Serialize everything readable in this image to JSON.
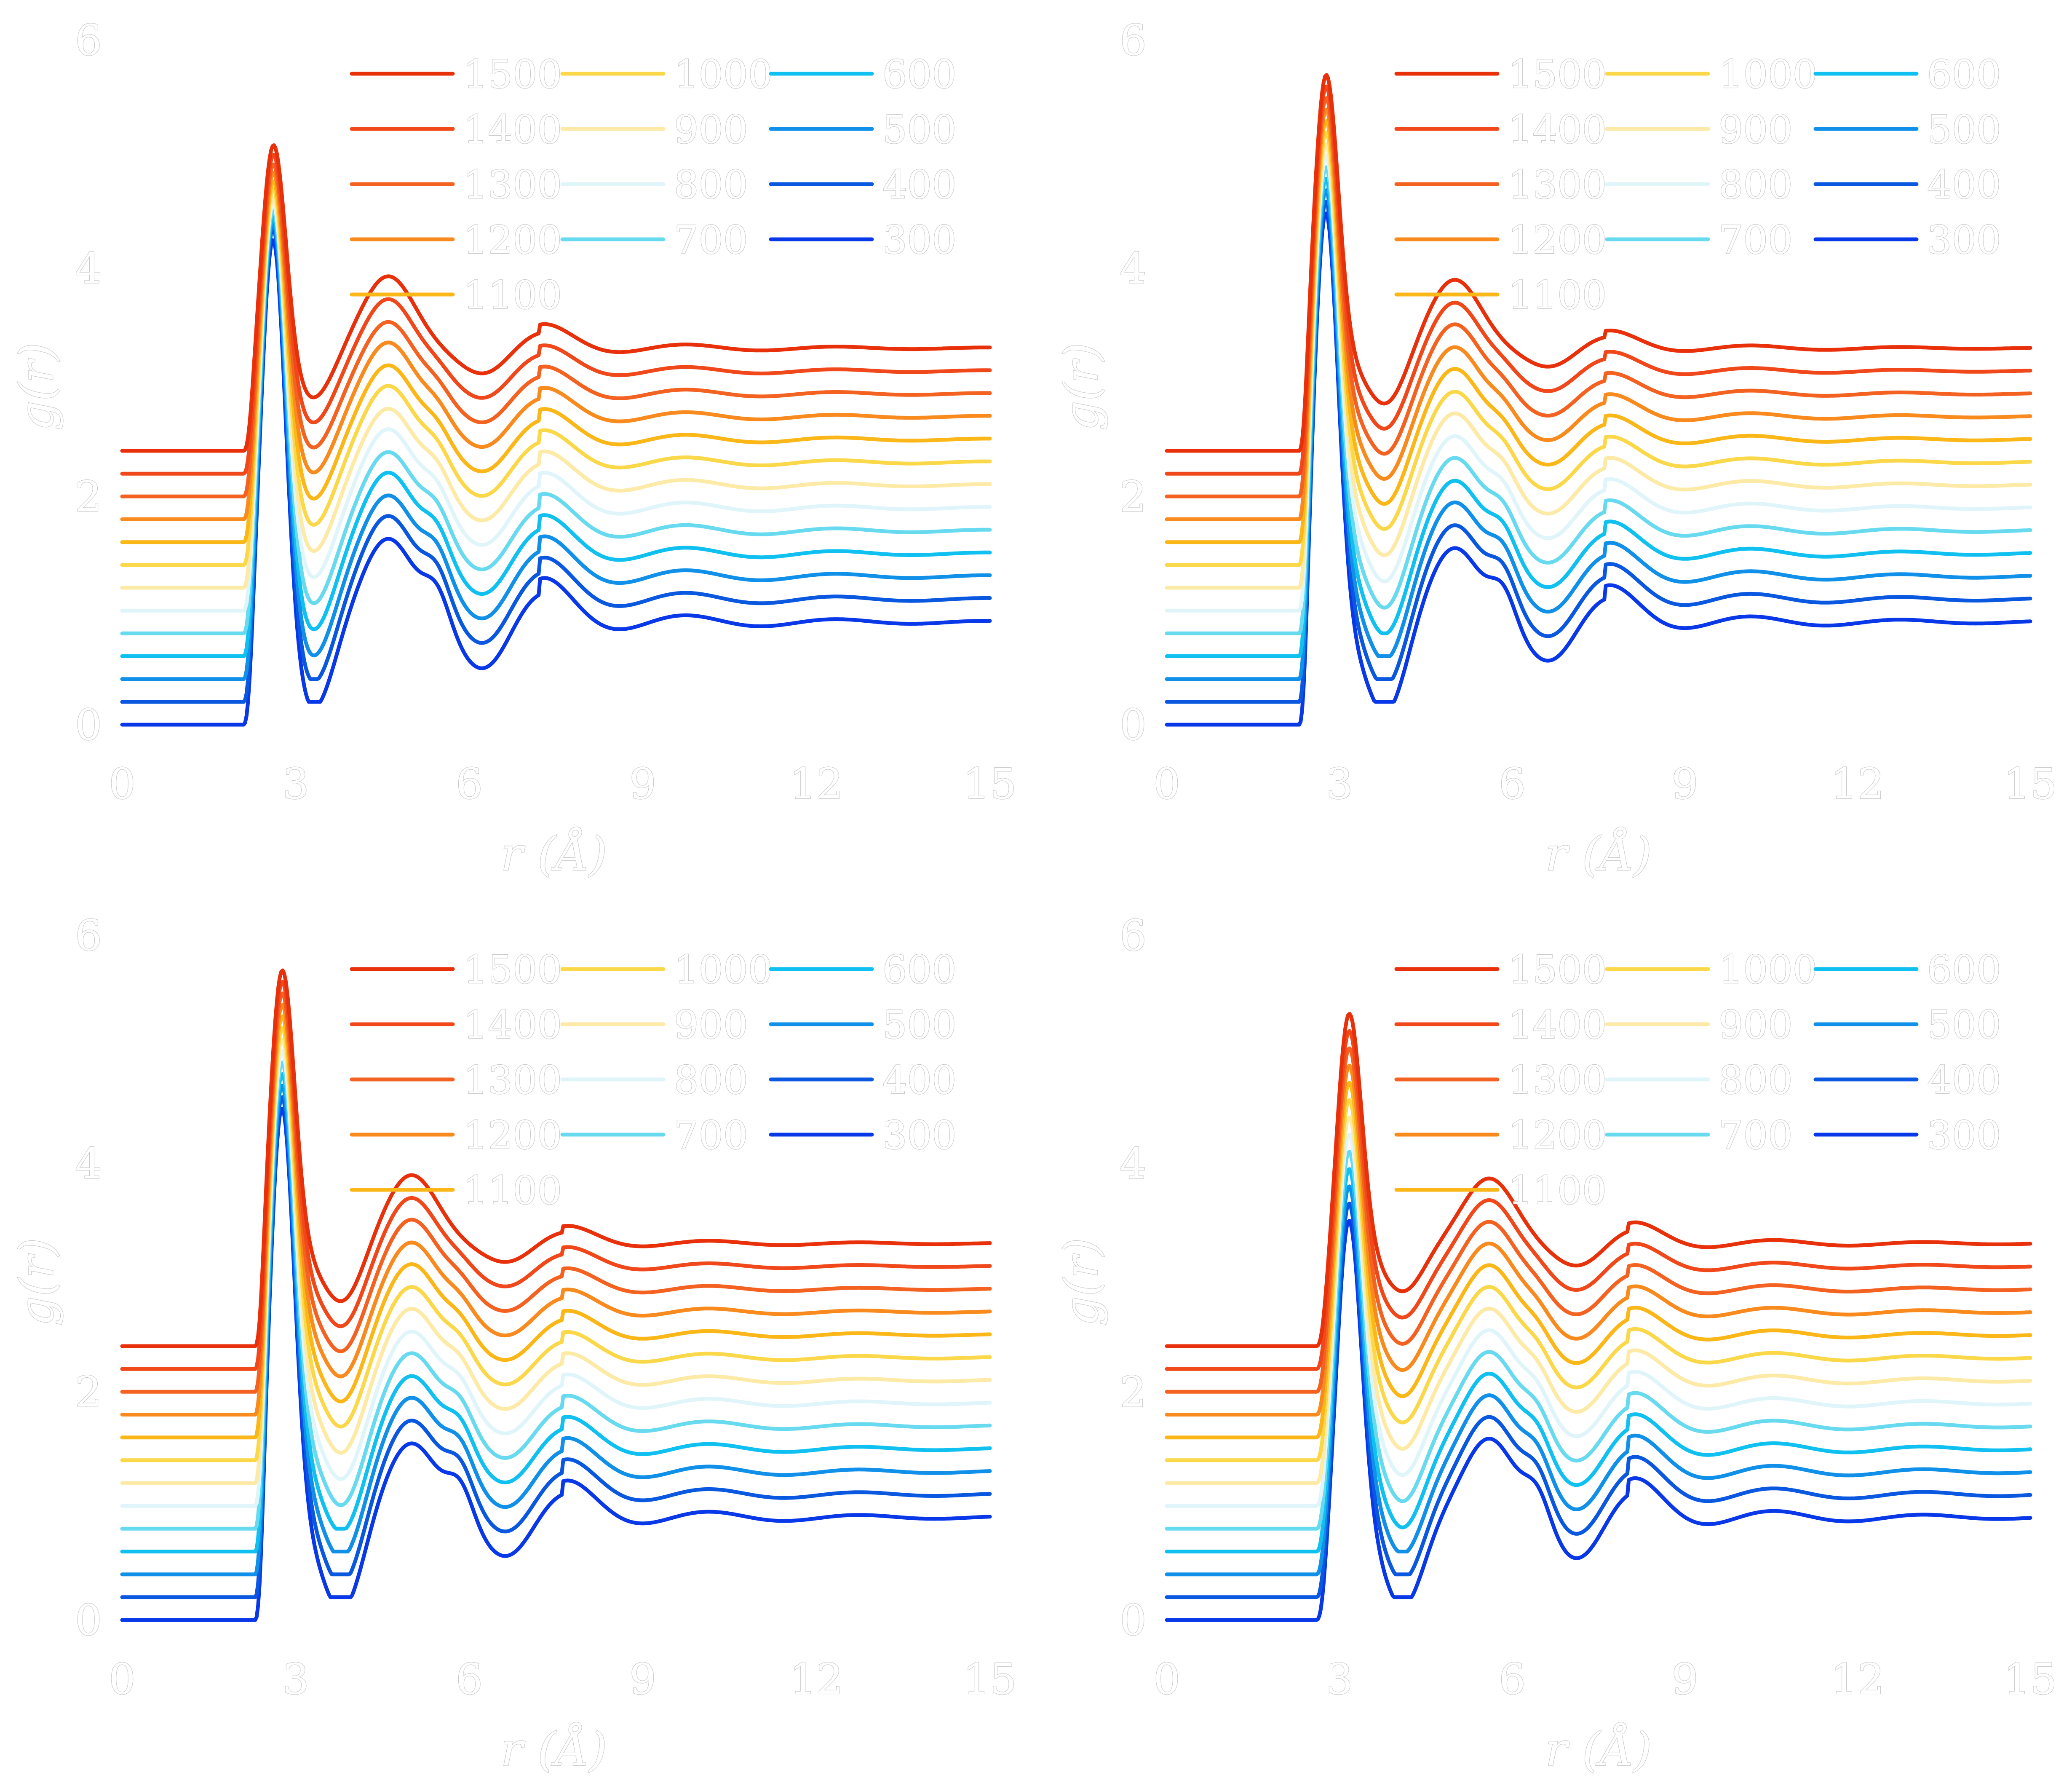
{
  "chart_data": [
    {
      "type": "line",
      "xlabel": "r (Å)",
      "ylabel": "g(r)",
      "xlim": [
        0,
        15
      ],
      "ylim": [
        0,
        6
      ],
      "xticks": [
        "0",
        "3",
        "6",
        "9",
        "12",
        "15"
      ],
      "yticks": [
        "0",
        "2",
        "4",
        "6"
      ],
      "grid": false,
      "legend_position": "top-right",
      "legend_columns": 3,
      "vertical_offset_per_series": 0.2,
      "peaks": {
        "first_r": 2.6,
        "second_r": 4.6,
        "third_r": 7.2,
        "onset_r": 2.1,
        "first_min_r": 3.3
      },
      "series": [
        {
          "name": "1500",
          "color": "#e8300a",
          "first_peak": 2.28,
          "min_depth": 0.56,
          "second_peak": 0.98,
          "split": 0.0,
          "osc": 0.3,
          "tail": 1.0
        },
        {
          "name": "1400",
          "color": "#f0481a",
          "first_peak": 2.4,
          "min_depth": 0.54,
          "second_peak": 0.98,
          "split": 0.05,
          "osc": 0.32,
          "tail": 1.0
        },
        {
          "name": "1300",
          "color": "#f46222",
          "first_peak": 2.52,
          "min_depth": 0.52,
          "second_peak": 0.98,
          "split": 0.08,
          "osc": 0.34,
          "tail": 1.0
        },
        {
          "name": "1200",
          "color": "#f88a1e",
          "first_peak": 2.65,
          "min_depth": 0.5,
          "second_peak": 1.0,
          "split": 0.1,
          "osc": 0.36,
          "tail": 1.0
        },
        {
          "name": "1100",
          "color": "#fbb618",
          "first_peak": 2.78,
          "min_depth": 0.47,
          "second_peak": 1.0,
          "split": 0.12,
          "osc": 0.38,
          "tail": 1.0
        },
        {
          "name": "1000",
          "color": "#fbd84a",
          "first_peak": 2.92,
          "min_depth": 0.44,
          "second_peak": 1.02,
          "split": 0.14,
          "osc": 0.4,
          "tail": 1.0
        },
        {
          "name": "900",
          "color": "#fdeaa6",
          "first_peak": 3.05,
          "min_depth": 0.41,
          "second_peak": 1.02,
          "split": 0.16,
          "osc": 0.42,
          "tail": 1.0
        },
        {
          "name": "800",
          "color": "#dff5fa",
          "first_peak": 3.2,
          "min_depth": 0.38,
          "second_peak": 1.04,
          "split": 0.18,
          "osc": 0.44,
          "tail": 1.0
        },
        {
          "name": "700",
          "color": "#68daf0",
          "first_peak": 3.35,
          "min_depth": 0.35,
          "second_peak": 1.04,
          "split": 0.2,
          "osc": 0.46,
          "tail": 1.0
        },
        {
          "name": "600",
          "color": "#10c0f0",
          "first_peak": 3.5,
          "min_depth": 0.32,
          "second_peak": 1.06,
          "split": 0.22,
          "osc": 0.48,
          "tail": 1.0
        },
        {
          "name": "500",
          "color": "#1090e8",
          "first_peak": 3.65,
          "min_depth": 0.29,
          "second_peak": 1.06,
          "split": 0.24,
          "osc": 0.5,
          "tail": 1.0
        },
        {
          "name": "400",
          "color": "#0a58e0",
          "first_peak": 3.8,
          "min_depth": 0.26,
          "second_peak": 1.08,
          "split": 0.26,
          "osc": 0.52,
          "tail": 1.0
        },
        {
          "name": "300",
          "color": "#0838e8",
          "first_peak": 3.9,
          "min_depth": 0.23,
          "second_peak": 1.08,
          "split": 0.28,
          "osc": 0.55,
          "tail": 1.0
        }
      ]
    },
    {
      "type": "line",
      "xlabel": "r (Å)",
      "ylabel": "g(r)",
      "xlim": [
        0,
        15
      ],
      "ylim": [
        0,
        6
      ],
      "xticks": [
        "0",
        "3",
        "6",
        "9",
        "12",
        "15"
      ],
      "yticks": [
        "0",
        "2",
        "4",
        "6"
      ],
      "grid": false,
      "legend_position": "top-right",
      "legend_columns": 3,
      "vertical_offset_per_series": 0.2,
      "peaks": {
        "first_r": 2.75,
        "second_r": 5.0,
        "third_r": 7.6,
        "onset_r": 2.3,
        "first_min_r": 3.8
      },
      "series": [
        {
          "name": "1500",
          "color": "#e8300a",
          "first_peak": 2.9,
          "min_depth": 0.5,
          "second_peak": 0.95,
          "split": 0.0,
          "osc": 0.22,
          "tail": 1.0
        },
        {
          "name": "1400",
          "color": "#f0481a",
          "first_peak": 3.0,
          "min_depth": 0.48,
          "second_peak": 0.95,
          "split": 0.05,
          "osc": 0.24,
          "tail": 1.0
        },
        {
          "name": "1300",
          "color": "#f46222",
          "first_peak": 3.1,
          "min_depth": 0.46,
          "second_peak": 0.96,
          "split": 0.08,
          "osc": 0.26,
          "tail": 1.0
        },
        {
          "name": "1200",
          "color": "#f88a1e",
          "first_peak": 3.2,
          "min_depth": 0.44,
          "second_peak": 0.96,
          "split": 0.1,
          "osc": 0.28,
          "tail": 1.0
        },
        {
          "name": "1100",
          "color": "#fbb618",
          "first_peak": 3.3,
          "min_depth": 0.42,
          "second_peak": 0.97,
          "split": 0.12,
          "osc": 0.3,
          "tail": 1.0
        },
        {
          "name": "1000",
          "color": "#fbd84a",
          "first_peak": 3.4,
          "min_depth": 0.4,
          "second_peak": 0.97,
          "split": 0.14,
          "osc": 0.32,
          "tail": 1.0
        },
        {
          "name": "900",
          "color": "#fdeaa6",
          "first_peak": 3.5,
          "min_depth": 0.37,
          "second_peak": 0.98,
          "split": 0.16,
          "osc": 0.34,
          "tail": 1.0
        },
        {
          "name": "800",
          "color": "#dff5fa",
          "first_peak": 3.6,
          "min_depth": 0.34,
          "second_peak": 0.98,
          "split": 0.18,
          "osc": 0.36,
          "tail": 1.0
        },
        {
          "name": "700",
          "color": "#68daf0",
          "first_peak": 3.7,
          "min_depth": 0.31,
          "second_peak": 0.99,
          "split": 0.2,
          "osc": 0.38,
          "tail": 1.0
        },
        {
          "name": "600",
          "color": "#10c0f0",
          "first_peak": 3.8,
          "min_depth": 0.28,
          "second_peak": 0.99,
          "split": 0.22,
          "osc": 0.4,
          "tail": 1.0
        },
        {
          "name": "500",
          "color": "#1090e8",
          "first_peak": 3.9,
          "min_depth": 0.25,
          "second_peak": 1.0,
          "split": 0.24,
          "osc": 0.42,
          "tail": 1.0
        },
        {
          "name": "400",
          "color": "#0a58e0",
          "first_peak": 4.0,
          "min_depth": 0.22,
          "second_peak": 1.0,
          "split": 0.26,
          "osc": 0.44,
          "tail": 1.0
        },
        {
          "name": "300",
          "color": "#0838e8",
          "first_peak": 4.1,
          "min_depth": 0.19,
          "second_peak": 1.0,
          "split": 0.28,
          "osc": 0.46,
          "tail": 1.0
        }
      ]
    },
    {
      "type": "line",
      "xlabel": "r (Å)",
      "ylabel": "g(r)",
      "xlim": [
        0,
        15
      ],
      "ylim": [
        0,
        6
      ],
      "xticks": [
        "0",
        "3",
        "6",
        "9",
        "12",
        "15"
      ],
      "yticks": [
        "0",
        "2",
        "4",
        "6"
      ],
      "grid": false,
      "legend_position": "top-right",
      "legend_columns": 3,
      "vertical_offset_per_series": 0.2,
      "peaks": {
        "first_r": 2.75,
        "second_r": 5.0,
        "third_r": 7.6,
        "onset_r": 2.3,
        "first_min_r": 3.8
      },
      "series": [
        {
          "name": "1500",
          "color": "#e8300a",
          "first_peak": 2.9,
          "min_depth": 0.48,
          "second_peak": 0.95,
          "split": 0.0,
          "osc": 0.22,
          "tail": 1.0
        },
        {
          "name": "1400",
          "color": "#f0481a",
          "first_peak": 3.0,
          "min_depth": 0.46,
          "second_peak": 0.95,
          "split": 0.05,
          "osc": 0.24,
          "tail": 1.0
        },
        {
          "name": "1300",
          "color": "#f46222",
          "first_peak": 3.1,
          "min_depth": 0.44,
          "second_peak": 0.96,
          "split": 0.08,
          "osc": 0.26,
          "tail": 1.0
        },
        {
          "name": "1200",
          "color": "#f88a1e",
          "first_peak": 3.2,
          "min_depth": 0.42,
          "second_peak": 0.96,
          "split": 0.1,
          "osc": 0.28,
          "tail": 1.0
        },
        {
          "name": "1100",
          "color": "#fbb618",
          "first_peak": 3.3,
          "min_depth": 0.4,
          "second_peak": 0.97,
          "split": 0.12,
          "osc": 0.3,
          "tail": 1.0
        },
        {
          "name": "1000",
          "color": "#fbd84a",
          "first_peak": 3.4,
          "min_depth": 0.38,
          "second_peak": 0.97,
          "split": 0.14,
          "osc": 0.32,
          "tail": 1.0
        },
        {
          "name": "900",
          "color": "#fdeaa6",
          "first_peak": 3.5,
          "min_depth": 0.35,
          "second_peak": 0.98,
          "split": 0.16,
          "osc": 0.34,
          "tail": 1.0
        },
        {
          "name": "800",
          "color": "#dff5fa",
          "first_peak": 3.6,
          "min_depth": 0.32,
          "second_peak": 0.98,
          "split": 0.18,
          "osc": 0.36,
          "tail": 1.0
        },
        {
          "name": "700",
          "color": "#68daf0",
          "first_peak": 3.7,
          "min_depth": 0.29,
          "second_peak": 0.99,
          "split": 0.2,
          "osc": 0.38,
          "tail": 1.0
        },
        {
          "name": "600",
          "color": "#10c0f0",
          "first_peak": 3.8,
          "min_depth": 0.26,
          "second_peak": 0.99,
          "split": 0.22,
          "osc": 0.4,
          "tail": 1.0
        },
        {
          "name": "500",
          "color": "#1090e8",
          "first_peak": 3.9,
          "min_depth": 0.23,
          "second_peak": 1.0,
          "split": 0.24,
          "osc": 0.42,
          "tail": 1.0
        },
        {
          "name": "400",
          "color": "#0a58e0",
          "first_peak": 4.0,
          "min_depth": 0.2,
          "second_peak": 1.0,
          "split": 0.26,
          "osc": 0.44,
          "tail": 1.0
        },
        {
          "name": "300",
          "color": "#0838e8",
          "first_peak": 4.1,
          "min_depth": 0.17,
          "second_peak": 1.0,
          "split": 0.28,
          "osc": 0.46,
          "tail": 1.0
        }
      ]
    },
    {
      "type": "line",
      "xlabel": "r (Å)",
      "ylabel": "g(r)",
      "xlim": [
        0,
        15
      ],
      "ylim": [
        0,
        6
      ],
      "xticks": [
        "0",
        "3",
        "6",
        "9",
        "12",
        "15"
      ],
      "yticks": [
        "0",
        "2",
        "4",
        "6"
      ],
      "grid": false,
      "legend_position": "top-right",
      "legend_columns": 3,
      "vertical_offset_per_series": 0.2,
      "peaks": {
        "first_r": 3.15,
        "second_r": 5.6,
        "third_r": 8.0,
        "onset_r": 2.6,
        "first_min_r": 4.1
      },
      "series": [
        {
          "name": "1500",
          "color": "#e8300a",
          "first_peak": 2.4,
          "min_depth": 0.58,
          "second_peak": 0.92,
          "split": 0.0,
          "osc": 0.28,
          "tail": 1.0
        },
        {
          "name": "1400",
          "color": "#f0481a",
          "first_peak": 2.45,
          "min_depth": 0.55,
          "second_peak": 0.93,
          "split": 0.04,
          "osc": 0.3,
          "tail": 1.0
        },
        {
          "name": "1300",
          "color": "#f46222",
          "first_peak": 2.5,
          "min_depth": 0.52,
          "second_peak": 0.94,
          "split": 0.06,
          "osc": 0.32,
          "tail": 1.0
        },
        {
          "name": "1200",
          "color": "#f88a1e",
          "first_peak": 2.55,
          "min_depth": 0.49,
          "second_peak": 0.95,
          "split": 0.08,
          "osc": 0.34,
          "tail": 1.0
        },
        {
          "name": "1100",
          "color": "#fbb618",
          "first_peak": 2.6,
          "min_depth": 0.46,
          "second_peak": 0.96,
          "split": 0.1,
          "osc": 0.36,
          "tail": 1.0
        },
        {
          "name": "1000",
          "color": "#fbd84a",
          "first_peak": 2.65,
          "min_depth": 0.43,
          "second_peak": 0.97,
          "split": 0.12,
          "osc": 0.38,
          "tail": 1.0
        },
        {
          "name": "900",
          "color": "#fdeaa6",
          "first_peak": 2.7,
          "min_depth": 0.4,
          "second_peak": 0.98,
          "split": 0.14,
          "osc": 0.4,
          "tail": 1.0
        },
        {
          "name": "800",
          "color": "#dff5fa",
          "first_peak": 2.75,
          "min_depth": 0.37,
          "second_peak": 0.99,
          "split": 0.16,
          "osc": 0.42,
          "tail": 1.0
        },
        {
          "name": "700",
          "color": "#68daf0",
          "first_peak": 2.8,
          "min_depth": 0.34,
          "second_peak": 1.0,
          "split": 0.18,
          "osc": 0.44,
          "tail": 1.0
        },
        {
          "name": "600",
          "color": "#10c0f0",
          "first_peak": 2.85,
          "min_depth": 0.31,
          "second_peak": 1.01,
          "split": 0.2,
          "osc": 0.46,
          "tail": 1.0
        },
        {
          "name": "500",
          "color": "#1090e8",
          "first_peak": 2.9,
          "min_depth": 0.28,
          "second_peak": 1.02,
          "split": 0.22,
          "osc": 0.48,
          "tail": 1.0
        },
        {
          "name": "400",
          "color": "#0a58e0",
          "first_peak": 2.95,
          "min_depth": 0.25,
          "second_peak": 1.03,
          "split": 0.24,
          "osc": 0.5,
          "tail": 1.0
        },
        {
          "name": "300",
          "color": "#0838e8",
          "first_peak": 3.0,
          "min_depth": 0.22,
          "second_peak": 1.04,
          "split": 0.26,
          "osc": 0.52,
          "tail": 1.0
        }
      ]
    }
  ]
}
